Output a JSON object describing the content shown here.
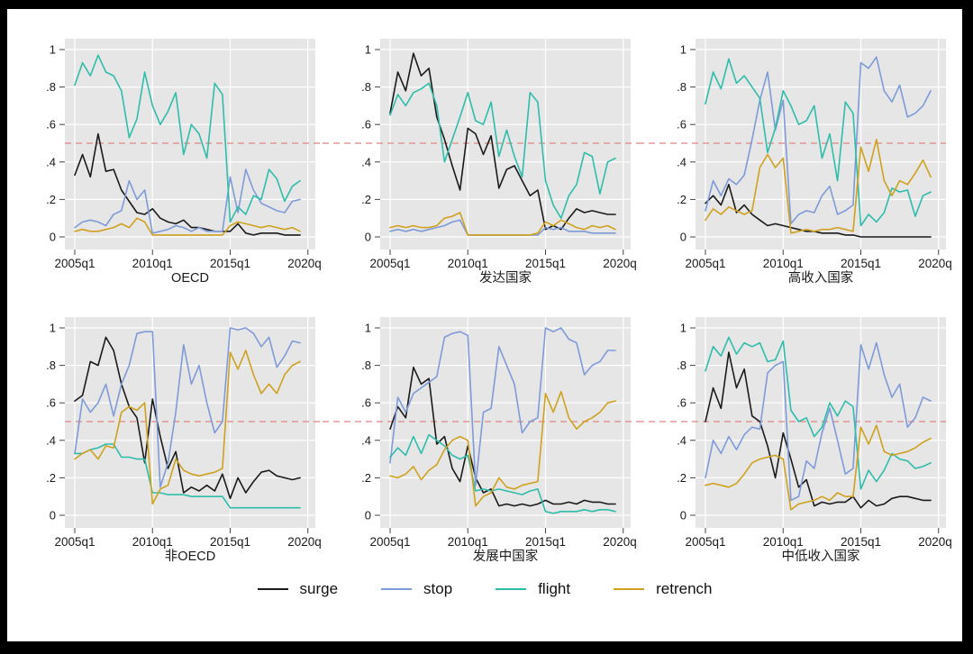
{
  "figure": {
    "frame_color": "#000000",
    "canvas_bg": "#ffffff",
    "plot_bg": "#e6e6e6",
    "grid_color": "#ffffff",
    "tick_color": "#444444",
    "text_color": "#1a1a1a",
    "ref_line": {
      "value": 0.5,
      "color": "#e08585",
      "style": "dashed"
    }
  },
  "axes": {
    "y_tick_labels": [
      "0",
      ".2",
      ".4",
      ".6",
      ".8",
      "1"
    ],
    "y_tick_values": [
      0,
      0.2,
      0.4,
      0.6,
      0.8,
      1
    ],
    "x_tick_labels": [
      "2005q1",
      "2010q1",
      "2015q1",
      "2020q1"
    ],
    "x_tick_values": [
      2005,
      2010,
      2015,
      2020
    ]
  },
  "legend": {
    "items": [
      {
        "label": "surge",
        "color": "#1a1a1a"
      },
      {
        "label": "stop",
        "color": "#7e9bd8"
      },
      {
        "label": "flight",
        "color": "#2ebdaa"
      },
      {
        "label": "retrench",
        "color": "#cfa11e"
      }
    ]
  },
  "chart_data": [
    {
      "type": "line",
      "title": "OECD",
      "ylim": [
        0,
        1
      ],
      "x_start": 2005,
      "x_step": 0.5,
      "grid": true,
      "legend_position": "bottom",
      "series": [
        {
          "name": "surge",
          "values": [
            0.33,
            0.44,
            0.32,
            0.55,
            0.35,
            0.36,
            0.25,
            0.19,
            0.13,
            0.12,
            0.15,
            0.1,
            0.08,
            0.07,
            0.09,
            0.05,
            0.05,
            0.04,
            0.03,
            0.03,
            0.03,
            0.07,
            0.02,
            0.01,
            0.02,
            0.02,
            0.02,
            0.01,
            0.01,
            0.01
          ]
        },
        {
          "name": "stop",
          "values": [
            0.05,
            0.08,
            0.09,
            0.08,
            0.06,
            0.12,
            0.14,
            0.3,
            0.2,
            0.25,
            0.02,
            0.03,
            0.04,
            0.06,
            0.05,
            0.03,
            0.05,
            0.03,
            0.03,
            0.03,
            0.32,
            0.13,
            0.36,
            0.25,
            0.18,
            0.16,
            0.14,
            0.13,
            0.19,
            0.2
          ]
        },
        {
          "name": "flight",
          "values": [
            0.81,
            0.93,
            0.86,
            0.97,
            0.88,
            0.86,
            0.78,
            0.53,
            0.63,
            0.88,
            0.7,
            0.6,
            0.67,
            0.77,
            0.44,
            0.6,
            0.55,
            0.42,
            0.82,
            0.76,
            0.08,
            0.16,
            0.12,
            0.22,
            0.2,
            0.36,
            0.31,
            0.19,
            0.27,
            0.3
          ]
        },
        {
          "name": "retrench",
          "values": [
            0.03,
            0.04,
            0.03,
            0.03,
            0.04,
            0.05,
            0.07,
            0.05,
            0.1,
            0.08,
            0.01,
            0.01,
            0.01,
            0.01,
            0.01,
            0.01,
            0.01,
            0.01,
            0.01,
            0.01,
            0.06,
            0.08,
            0.07,
            0.06,
            0.05,
            0.06,
            0.05,
            0.04,
            0.05,
            0.03
          ]
        }
      ]
    },
    {
      "type": "line",
      "title": "发达国家",
      "ylim": [
        0,
        1
      ],
      "x_start": 2005,
      "x_step": 0.5,
      "grid": true,
      "legend_position": "bottom",
      "series": [
        {
          "name": "surge",
          "values": [
            0.66,
            0.88,
            0.78,
            0.98,
            0.86,
            0.9,
            0.64,
            0.52,
            0.38,
            0.25,
            0.58,
            0.55,
            0.44,
            0.54,
            0.26,
            0.36,
            0.38,
            0.3,
            0.22,
            0.25,
            0.04,
            0.06,
            0.04,
            0.1,
            0.15,
            0.13,
            0.14,
            0.13,
            0.12,
            0.12
          ]
        },
        {
          "name": "stop",
          "values": [
            0.03,
            0.04,
            0.03,
            0.04,
            0.03,
            0.04,
            0.05,
            0.06,
            0.08,
            0.09,
            0.01,
            0.01,
            0.01,
            0.01,
            0.01,
            0.01,
            0.01,
            0.01,
            0.01,
            0.01,
            0.05,
            0.04,
            0.05,
            0.03,
            0.03,
            0.03,
            0.02,
            0.02,
            0.02,
            0.02
          ]
        },
        {
          "name": "flight",
          "values": [
            0.65,
            0.76,
            0.7,
            0.77,
            0.79,
            0.82,
            0.7,
            0.4,
            0.52,
            0.64,
            0.77,
            0.62,
            0.6,
            0.72,
            0.43,
            0.57,
            0.43,
            0.32,
            0.77,
            0.72,
            0.3,
            0.17,
            0.1,
            0.22,
            0.28,
            0.45,
            0.43,
            0.23,
            0.4,
            0.42
          ]
        },
        {
          "name": "retrench",
          "values": [
            0.05,
            0.06,
            0.05,
            0.06,
            0.05,
            0.05,
            0.06,
            0.1,
            0.11,
            0.13,
            0.01,
            0.01,
            0.01,
            0.01,
            0.01,
            0.01,
            0.01,
            0.01,
            0.01,
            0.02,
            0.08,
            0.06,
            0.09,
            0.07,
            0.05,
            0.04,
            0.06,
            0.05,
            0.06,
            0.04
          ]
        }
      ]
    },
    {
      "type": "line",
      "title": "高收入国家",
      "ylim": [
        0,
        1
      ],
      "x_start": 2005,
      "x_step": 0.5,
      "grid": true,
      "legend_position": "bottom",
      "series": [
        {
          "name": "surge",
          "values": [
            0.18,
            0.22,
            0.17,
            0.28,
            0.13,
            0.17,
            0.12,
            0.09,
            0.06,
            0.07,
            0.06,
            0.05,
            0.04,
            0.03,
            0.03,
            0.02,
            0.02,
            0.02,
            0.01,
            0.01,
            0.0,
            0.0,
            0.0,
            0.0,
            0.0,
            0.0,
            0.0,
            0.0,
            0.0,
            0.0
          ]
        },
        {
          "name": "stop",
          "values": [
            0.14,
            0.3,
            0.22,
            0.31,
            0.28,
            0.33,
            0.52,
            0.73,
            0.88,
            0.57,
            0.73,
            0.07,
            0.12,
            0.14,
            0.13,
            0.22,
            0.27,
            0.12,
            0.14,
            0.17,
            0.93,
            0.9,
            0.96,
            0.78,
            0.72,
            0.81,
            0.64,
            0.66,
            0.7,
            0.78
          ]
        },
        {
          "name": "flight",
          "values": [
            0.71,
            0.88,
            0.79,
            0.95,
            0.82,
            0.86,
            0.8,
            0.74,
            0.45,
            0.58,
            0.78,
            0.7,
            0.6,
            0.62,
            0.7,
            0.42,
            0.55,
            0.3,
            0.72,
            0.66,
            0.06,
            0.12,
            0.08,
            0.13,
            0.26,
            0.24,
            0.25,
            0.11,
            0.22,
            0.24
          ]
        },
        {
          "name": "retrench",
          "values": [
            0.09,
            0.15,
            0.12,
            0.16,
            0.14,
            0.12,
            0.14,
            0.37,
            0.44,
            0.37,
            0.42,
            0.02,
            0.03,
            0.04,
            0.03,
            0.04,
            0.04,
            0.05,
            0.04,
            0.03,
            0.48,
            0.35,
            0.52,
            0.3,
            0.22,
            0.3,
            0.28,
            0.34,
            0.41,
            0.32
          ]
        }
      ]
    },
    {
      "type": "line",
      "title": "非OECD",
      "ylim": [
        0,
        1
      ],
      "x_start": 2005,
      "x_step": 0.5,
      "grid": true,
      "legend_position": "bottom",
      "series": [
        {
          "name": "surge",
          "values": [
            0.61,
            0.64,
            0.82,
            0.8,
            0.95,
            0.88,
            0.7,
            0.58,
            0.52,
            0.28,
            0.62,
            0.42,
            0.25,
            0.34,
            0.12,
            0.15,
            0.13,
            0.16,
            0.13,
            0.22,
            0.09,
            0.2,
            0.12,
            0.18,
            0.23,
            0.24,
            0.21,
            0.2,
            0.19,
            0.2
          ]
        },
        {
          "name": "stop",
          "values": [
            0.33,
            0.62,
            0.55,
            0.6,
            0.7,
            0.53,
            0.7,
            0.8,
            0.97,
            0.98,
            0.98,
            0.15,
            0.28,
            0.55,
            0.91,
            0.7,
            0.8,
            0.6,
            0.44,
            0.5,
            1.0,
            0.99,
            1.0,
            0.97,
            0.9,
            0.95,
            0.79,
            0.85,
            0.93,
            0.92
          ]
        },
        {
          "name": "flight",
          "values": [
            0.33,
            0.33,
            0.35,
            0.36,
            0.38,
            0.38,
            0.31,
            0.31,
            0.3,
            0.3,
            0.12,
            0.12,
            0.11,
            0.11,
            0.11,
            0.1,
            0.1,
            0.1,
            0.1,
            0.1,
            0.04,
            0.04,
            0.04,
            0.04,
            0.04,
            0.04,
            0.04,
            0.04,
            0.04,
            0.04
          ]
        },
        {
          "name": "retrench",
          "values": [
            0.3,
            0.33,
            0.35,
            0.3,
            0.37,
            0.36,
            0.55,
            0.58,
            0.56,
            0.6,
            0.06,
            0.14,
            0.16,
            0.3,
            0.24,
            0.22,
            0.21,
            0.22,
            0.23,
            0.25,
            0.87,
            0.78,
            0.88,
            0.75,
            0.65,
            0.7,
            0.65,
            0.75,
            0.8,
            0.82
          ]
        }
      ]
    },
    {
      "type": "line",
      "title": "发展中国家",
      "ylim": [
        0,
        1
      ],
      "x_start": 2005,
      "x_step": 0.5,
      "grid": true,
      "legend_position": "bottom",
      "series": [
        {
          "name": "surge",
          "values": [
            0.46,
            0.58,
            0.52,
            0.79,
            0.7,
            0.73,
            0.38,
            0.42,
            0.25,
            0.18,
            0.37,
            0.2,
            0.12,
            0.14,
            0.05,
            0.06,
            0.05,
            0.06,
            0.05,
            0.06,
            0.08,
            0.06,
            0.06,
            0.07,
            0.06,
            0.08,
            0.07,
            0.07,
            0.06,
            0.06
          ]
        },
        {
          "name": "stop",
          "values": [
            0.28,
            0.63,
            0.55,
            0.65,
            0.68,
            0.71,
            0.74,
            0.95,
            0.97,
            0.98,
            0.96,
            0.16,
            0.55,
            0.57,
            0.9,
            0.8,
            0.7,
            0.44,
            0.5,
            0.52,
            1.0,
            0.98,
            1.0,
            0.94,
            0.92,
            0.75,
            0.8,
            0.82,
            0.88,
            0.88
          ]
        },
        {
          "name": "flight",
          "values": [
            0.31,
            0.36,
            0.32,
            0.42,
            0.33,
            0.43,
            0.4,
            0.37,
            0.32,
            0.3,
            0.32,
            0.13,
            0.14,
            0.13,
            0.14,
            0.13,
            0.12,
            0.11,
            0.13,
            0.14,
            0.02,
            0.01,
            0.02,
            0.02,
            0.02,
            0.03,
            0.02,
            0.03,
            0.03,
            0.02
          ]
        },
        {
          "name": "retrench",
          "values": [
            0.21,
            0.2,
            0.22,
            0.26,
            0.19,
            0.24,
            0.27,
            0.35,
            0.4,
            0.42,
            0.4,
            0.05,
            0.1,
            0.12,
            0.2,
            0.15,
            0.14,
            0.16,
            0.17,
            0.18,
            0.65,
            0.55,
            0.66,
            0.52,
            0.46,
            0.5,
            0.52,
            0.55,
            0.6,
            0.61
          ]
        }
      ]
    },
    {
      "type": "line",
      "title": "中低收入国家",
      "ylim": [
        0,
        1
      ],
      "x_start": 2005,
      "x_step": 0.5,
      "grid": true,
      "legend_position": "bottom",
      "series": [
        {
          "name": "surge",
          "values": [
            0.5,
            0.68,
            0.57,
            0.87,
            0.68,
            0.78,
            0.53,
            0.5,
            0.37,
            0.2,
            0.44,
            0.3,
            0.15,
            0.19,
            0.05,
            0.07,
            0.06,
            0.07,
            0.07,
            0.1,
            0.04,
            0.08,
            0.05,
            0.06,
            0.09,
            0.1,
            0.1,
            0.09,
            0.08,
            0.08
          ]
        },
        {
          "name": "stop",
          "values": [
            0.2,
            0.4,
            0.33,
            0.42,
            0.35,
            0.43,
            0.47,
            0.46,
            0.76,
            0.8,
            0.82,
            0.08,
            0.1,
            0.29,
            0.25,
            0.44,
            0.57,
            0.4,
            0.22,
            0.25,
            0.91,
            0.78,
            0.92,
            0.75,
            0.63,
            0.7,
            0.47,
            0.52,
            0.63,
            0.61
          ]
        },
        {
          "name": "flight",
          "values": [
            0.77,
            0.9,
            0.85,
            0.95,
            0.86,
            0.92,
            0.9,
            0.92,
            0.82,
            0.83,
            0.93,
            0.56,
            0.5,
            0.52,
            0.42,
            0.47,
            0.6,
            0.53,
            0.61,
            0.58,
            0.14,
            0.24,
            0.18,
            0.24,
            0.33,
            0.3,
            0.29,
            0.25,
            0.26,
            0.28
          ]
        },
        {
          "name": "retrench",
          "values": [
            0.16,
            0.17,
            0.16,
            0.15,
            0.17,
            0.22,
            0.28,
            0.3,
            0.31,
            0.32,
            0.3,
            0.03,
            0.06,
            0.07,
            0.08,
            0.1,
            0.08,
            0.12,
            0.1,
            0.1,
            0.47,
            0.38,
            0.48,
            0.34,
            0.32,
            0.33,
            0.34,
            0.36,
            0.39,
            0.41
          ]
        }
      ]
    }
  ]
}
